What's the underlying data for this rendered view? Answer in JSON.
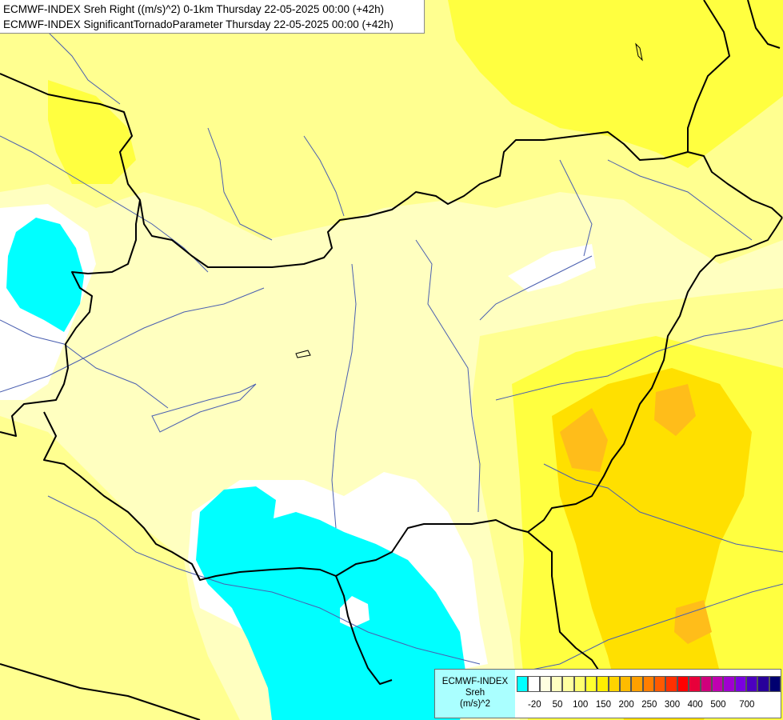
{
  "title": {
    "line1": "ECMWF-INDEX Sreh Right ((m/s)^2) 0-1km Thursday 22-05-2025 00:00 (+42h)",
    "line2": "ECMWF-INDEX SignificantTornadoParameter Thursday 22-05-2025 00:00 (+42h)"
  },
  "legend": {
    "line1": "ECMWF-INDEX",
    "line2": "Sreh",
    "line3": "(m/s)^2",
    "colors": [
      "#00ffff",
      "#ffffff",
      "#ffffe0",
      "#ffffc0",
      "#ffffa0",
      "#ffff70",
      "#ffff30",
      "#ffee00",
      "#ffd400",
      "#ffbb00",
      "#ffa000",
      "#ff7e00",
      "#ff5a00",
      "#ff3000",
      "#ff0000",
      "#e8003a",
      "#d0007c",
      "#c000b0",
      "#a000d0",
      "#7a00e0",
      "#4c00c0",
      "#28009a",
      "#000070"
    ],
    "ticks": [
      "-20",
      "50",
      "100",
      "150",
      "200",
      "250",
      "300",
      "400",
      "500",
      "700"
    ]
  },
  "map_colors": {
    "background": "#ffffc0",
    "light_yellow": "#ffff90",
    "yellow": "#ffff40",
    "gold": "#ffe000",
    "orange": "#ffbd1a",
    "cyan": "#00ffff",
    "white": "#ffffff",
    "border": "#000000",
    "river": "#4a5fb0"
  }
}
